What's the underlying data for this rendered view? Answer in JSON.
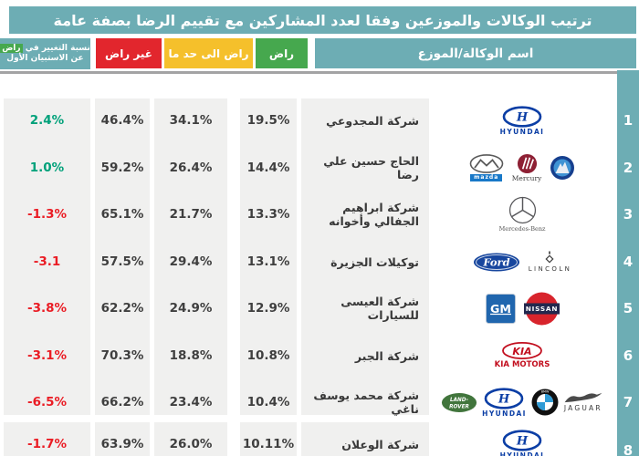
{
  "title": "ترتيب الوكالات والموزعين وفقا لعدد المشاركين مع تقييم الرضا بصفة عامة",
  "header": {
    "agency_column": "اسم الوكالة/الموزع",
    "satisfied": "راض",
    "somewhat_satisfied": "راض الى حد ما",
    "not_satisfied": "غير راض",
    "change_line1_prefix": "نسبة التغيير في",
    "change_highlight": "راض",
    "change_line2": "عن الاستبيان الأول"
  },
  "colors": {
    "teal": "#6dadb4",
    "red": "#e2262d",
    "yellow": "#f5c02b",
    "green": "#46a84e",
    "positive": "#00a17a",
    "negative": "#ea1c24",
    "text_dark": "#3f3f3f",
    "strip": "#f0f0ef",
    "separator": "#a3a3a4"
  },
  "rows": [
    {
      "rank": "1",
      "name": "شركة المجدوعي",
      "satisfied": "19.5%",
      "somewhat": "34.1%",
      "not_satisfied": "46.4%",
      "change": "2.4%",
      "change_positive": true,
      "brands": [
        "hyundai"
      ]
    },
    {
      "rank": "2",
      "name": "الحاج حسين علي رضا",
      "satisfied": "14.4%",
      "somewhat": "26.4%",
      "not_satisfied": "59.2%",
      "change": "1.0%",
      "change_positive": true,
      "brands": [
        "mazda",
        "mercury",
        "faw"
      ]
    },
    {
      "rank": "3",
      "name": "شركة ابراهيم الجفالي وأخوانه",
      "satisfied": "13.3%",
      "somewhat": "21.7%",
      "not_satisfied": "65.1%",
      "change": "-1.3%",
      "change_positive": false,
      "brands": [
        "mercedes-benz"
      ]
    },
    {
      "rank": "4",
      "name": "توكيلات الجزيرة",
      "satisfied": "13.1%",
      "somewhat": "29.4%",
      "not_satisfied": "57.5%",
      "change": "-3.1",
      "change_positive": false,
      "brands": [
        "ford",
        "lincoln"
      ]
    },
    {
      "rank": "5",
      "name": "شركة العيسى للسيارات",
      "satisfied": "12.9%",
      "somewhat": "24.9%",
      "not_satisfied": "62.2%",
      "change": "-3.8%",
      "change_positive": false,
      "brands": [
        "gm",
        "nissan"
      ]
    },
    {
      "rank": "6",
      "name": "شركة الجبر",
      "satisfied": "10.8%",
      "somewhat": "18.8%",
      "not_satisfied": "70.3%",
      "change": "-3.1%",
      "change_positive": false,
      "brands": [
        "kia"
      ]
    },
    {
      "rank": "7",
      "name": "شركة محمد يوسف ناغي",
      "satisfied": "10.4%",
      "somewhat": "23.4%",
      "not_satisfied": "66.2%",
      "change": "-6.5%",
      "change_positive": false,
      "brands": [
        "land-rover",
        "hyundai",
        "bmw",
        "jaguar"
      ]
    },
    {
      "rank": "8",
      "name": "شركة الوعلان",
      "satisfied": "10.11%",
      "somewhat": "26.0%",
      "not_satisfied": "63.9%",
      "change": "-1.7%",
      "change_positive": false,
      "brands": [
        "hyundai"
      ]
    }
  ],
  "chart_data": {
    "type": "table",
    "title": "ترتيب الوكالات والموزعين وفقا لعدد المشاركين مع تقييم الرضا بصفة عامة",
    "columns": [
      "الترتيب",
      "اسم الوكالة/الموزع",
      "راض",
      "راض الى حد ما",
      "غير راض",
      "نسبة التغيير في راض عن الاستبيان الأول"
    ],
    "rows": [
      [
        "1",
        "شركة المجدوعي",
        "19.5%",
        "34.1%",
        "46.4%",
        "2.4%"
      ],
      [
        "2",
        "الحاج حسين علي رضا",
        "14.4%",
        "26.4%",
        "59.2%",
        "1.0%"
      ],
      [
        "3",
        "شركة ابراهيم الجفالي وأخوانه",
        "13.3%",
        "21.7%",
        "65.1%",
        "-1.3%"
      ],
      [
        "4",
        "توكيلات الجزيرة",
        "13.1%",
        "29.4%",
        "57.5%",
        "-3.1"
      ],
      [
        "5",
        "شركة العيسى للسيارات",
        "12.9%",
        "24.9%",
        "62.2%",
        "-3.8%"
      ],
      [
        "6",
        "شركة الجبر",
        "10.8%",
        "18.8%",
        "70.3%",
        "-3.1%"
      ],
      [
        "7",
        "شركة محمد يوسف ناغي",
        "10.4%",
        "23.4%",
        "66.2%",
        "-6.5%"
      ],
      [
        "8",
        "شركة الوعلان",
        "10.11%",
        "26.0%",
        "63.9%",
        "-1.7%"
      ]
    ],
    "legend_note": "قيم موجبة خضراء، قيم سالبة حمراء"
  }
}
